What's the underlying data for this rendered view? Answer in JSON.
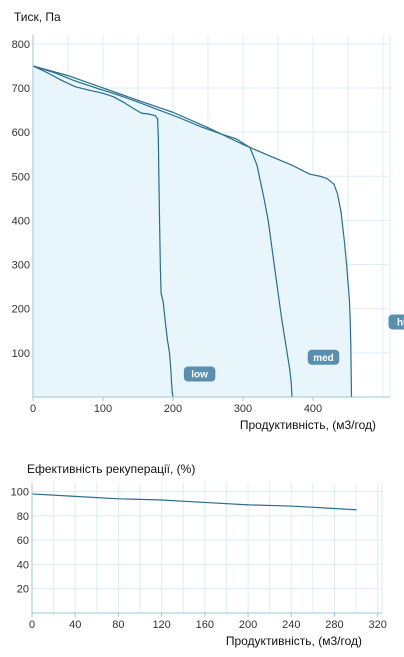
{
  "chart_data": [
    {
      "type": "line",
      "title": "Тиск, Па",
      "xlabel": "Продуктивність, (м3/год)",
      "ylabel": "Тиск, Па",
      "xlim": [
        0,
        510
      ],
      "ylim": [
        0,
        820
      ],
      "x_ticks": [
        0,
        100,
        200,
        300,
        400
      ],
      "y_ticks": [
        100,
        200,
        300,
        400,
        500,
        600,
        700,
        800
      ],
      "grid": true,
      "fill_color": "#e8f6fc",
      "line_color": "#2a6e8c",
      "grid_color": "#dbeef6",
      "badge_color": "#5b8fb0",
      "series": [
        {
          "name": "low",
          "label_at": [
            238,
            52
          ],
          "points": [
            [
              0,
              750
            ],
            [
              20,
              735
            ],
            [
              40,
              718
            ],
            [
              60,
              703
            ],
            [
              80,
              695
            ],
            [
              100,
              688
            ],
            [
              115,
              680
            ],
            [
              130,
              667
            ],
            [
              145,
              652
            ],
            [
              155,
              643
            ],
            [
              165,
              641
            ],
            [
              175,
              637
            ],
            [
              178,
              630
            ],
            [
              179,
              590
            ],
            [
              180,
              480
            ],
            [
              181,
              380
            ],
            [
              182,
              290
            ],
            [
              183,
              235
            ],
            [
              186,
              215
            ],
            [
              189,
              170
            ],
            [
              192,
              130
            ],
            [
              195,
              100
            ],
            [
              197,
              60
            ],
            [
              198,
              30
            ],
            [
              199,
              10
            ],
            [
              200,
              0
            ]
          ]
        },
        {
          "name": "med",
          "label_at": [
            415,
            90
          ],
          "points": [
            [
              0,
              750
            ],
            [
              30,
              735
            ],
            [
              60,
              716
            ],
            [
              90,
              700
            ],
            [
              120,
              685
            ],
            [
              150,
              668
            ],
            [
              180,
              650
            ],
            [
              210,
              632
            ],
            [
              240,
              612
            ],
            [
              270,
              595
            ],
            [
              290,
              585
            ],
            [
              310,
              565
            ],
            [
              320,
              525
            ],
            [
              330,
              450
            ],
            [
              336,
              400
            ],
            [
              342,
              330
            ],
            [
              348,
              260
            ],
            [
              355,
              180
            ],
            [
              362,
              110
            ],
            [
              367,
              60
            ],
            [
              369,
              30
            ],
            [
              370,
              0
            ]
          ]
        },
        {
          "name": "high",
          "label_at": [
            535,
            170
          ],
          "points": [
            [
              0,
              750
            ],
            [
              50,
              728
            ],
            [
              100,
              700
            ],
            [
              150,
              672
            ],
            [
              200,
              645
            ],
            [
              250,
              610
            ],
            [
              300,
              572
            ],
            [
              340,
              545
            ],
            [
              370,
              525
            ],
            [
              395,
              505
            ],
            [
              410,
              500
            ],
            [
              420,
              495
            ],
            [
              430,
              482
            ],
            [
              435,
              460
            ],
            [
              440,
              420
            ],
            [
              445,
              350
            ],
            [
              448,
              300
            ],
            [
              450,
              260
            ],
            [
              452,
              220
            ],
            [
              453,
              180
            ],
            [
              454,
              120
            ],
            [
              454.5,
              60
            ],
            [
              455,
              0
            ]
          ]
        }
      ]
    },
    {
      "type": "line",
      "title": "Ефективність рекуперації, (%)",
      "xlabel": "Продуктивність, (м3/год)",
      "ylabel": "Ефективність рекуперації, (%)",
      "xlim": [
        0,
        324
      ],
      "ylim": [
        0,
        107
      ],
      "x_ticks": [
        0,
        40,
        80,
        120,
        160,
        200,
        240,
        280,
        320
      ],
      "y_ticks": [
        20,
        40,
        60,
        80,
        100
      ],
      "grid": true,
      "line_color": "#2a6e8c",
      "grid_color": "#dbeef6",
      "series": [
        {
          "points": [
            [
              0,
              98
            ],
            [
              40,
              96
            ],
            [
              80,
              94
            ],
            [
              120,
              93
            ],
            [
              160,
              91
            ],
            [
              200,
              89
            ],
            [
              240,
              88
            ],
            [
              280,
              86
            ],
            [
              300,
              85
            ]
          ]
        }
      ]
    }
  ]
}
